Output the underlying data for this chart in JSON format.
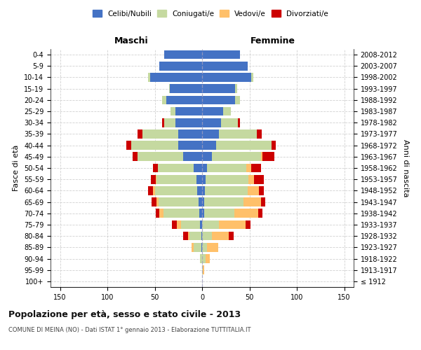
{
  "age_groups": [
    "100+",
    "95-99",
    "90-94",
    "85-89",
    "80-84",
    "75-79",
    "70-74",
    "65-69",
    "60-64",
    "55-59",
    "50-54",
    "45-49",
    "40-44",
    "35-39",
    "30-34",
    "25-29",
    "20-24",
    "15-19",
    "10-14",
    "5-9",
    "0-4"
  ],
  "birth_years": [
    "≤ 1912",
    "1913-1917",
    "1918-1922",
    "1923-1927",
    "1928-1932",
    "1933-1937",
    "1938-1942",
    "1943-1947",
    "1948-1952",
    "1953-1957",
    "1958-1962",
    "1963-1967",
    "1968-1972",
    "1973-1977",
    "1978-1982",
    "1983-1987",
    "1988-1992",
    "1993-1997",
    "1998-2002",
    "2003-2007",
    "2008-2012"
  ],
  "male": {
    "celibi": [
      0,
      0,
      0,
      1,
      1,
      2,
      3,
      4,
      5,
      6,
      9,
      20,
      25,
      25,
      28,
      28,
      38,
      34,
      55,
      45,
      40
    ],
    "coniugati": [
      0,
      0,
      2,
      8,
      12,
      20,
      38,
      42,
      45,
      42,
      38,
      48,
      50,
      38,
      12,
      5,
      4,
      1,
      2,
      0,
      0
    ],
    "vedovi": [
      0,
      0,
      0,
      2,
      2,
      5,
      4,
      2,
      2,
      1,
      0,
      0,
      0,
      0,
      0,
      0,
      0,
      0,
      0,
      0,
      0
    ],
    "divorziati": [
      0,
      0,
      0,
      0,
      5,
      5,
      4,
      5,
      5,
      5,
      5,
      5,
      5,
      5,
      2,
      0,
      0,
      0,
      0,
      0,
      0
    ]
  },
  "female": {
    "nubili": [
      0,
      0,
      0,
      0,
      0,
      0,
      2,
      2,
      3,
      4,
      5,
      10,
      15,
      18,
      20,
      22,
      35,
      35,
      52,
      48,
      40
    ],
    "coniugate": [
      0,
      1,
      4,
      5,
      10,
      18,
      32,
      42,
      45,
      45,
      42,
      52,
      58,
      40,
      18,
      8,
      5,
      2,
      2,
      0,
      0
    ],
    "vedove": [
      0,
      1,
      4,
      12,
      18,
      28,
      25,
      18,
      12,
      6,
      5,
      2,
      0,
      0,
      0,
      0,
      0,
      0,
      0,
      0,
      0
    ],
    "divorziate": [
      0,
      0,
      0,
      0,
      5,
      5,
      5,
      5,
      5,
      10,
      10,
      12,
      5,
      5,
      2,
      0,
      0,
      0,
      0,
      0,
      0
    ]
  },
  "colors": {
    "celibi": "#4472C4",
    "coniugati": "#c5d9a0",
    "vedovi": "#ffc06a",
    "divorziati": "#cc0000"
  },
  "title": "Popolazione per età, sesso e stato civile - 2013",
  "subtitle": "COMUNE DI MEINA (NO) - Dati ISTAT 1° gennaio 2013 - Elaborazione TUTTITALIA.IT",
  "xlabel_left": "Maschi",
  "xlabel_right": "Femmine",
  "ylabel_left": "Fasce di età",
  "ylabel_right": "Anni di nascita",
  "xlim": 160,
  "background": "#ffffff",
  "grid_color": "#cccccc"
}
